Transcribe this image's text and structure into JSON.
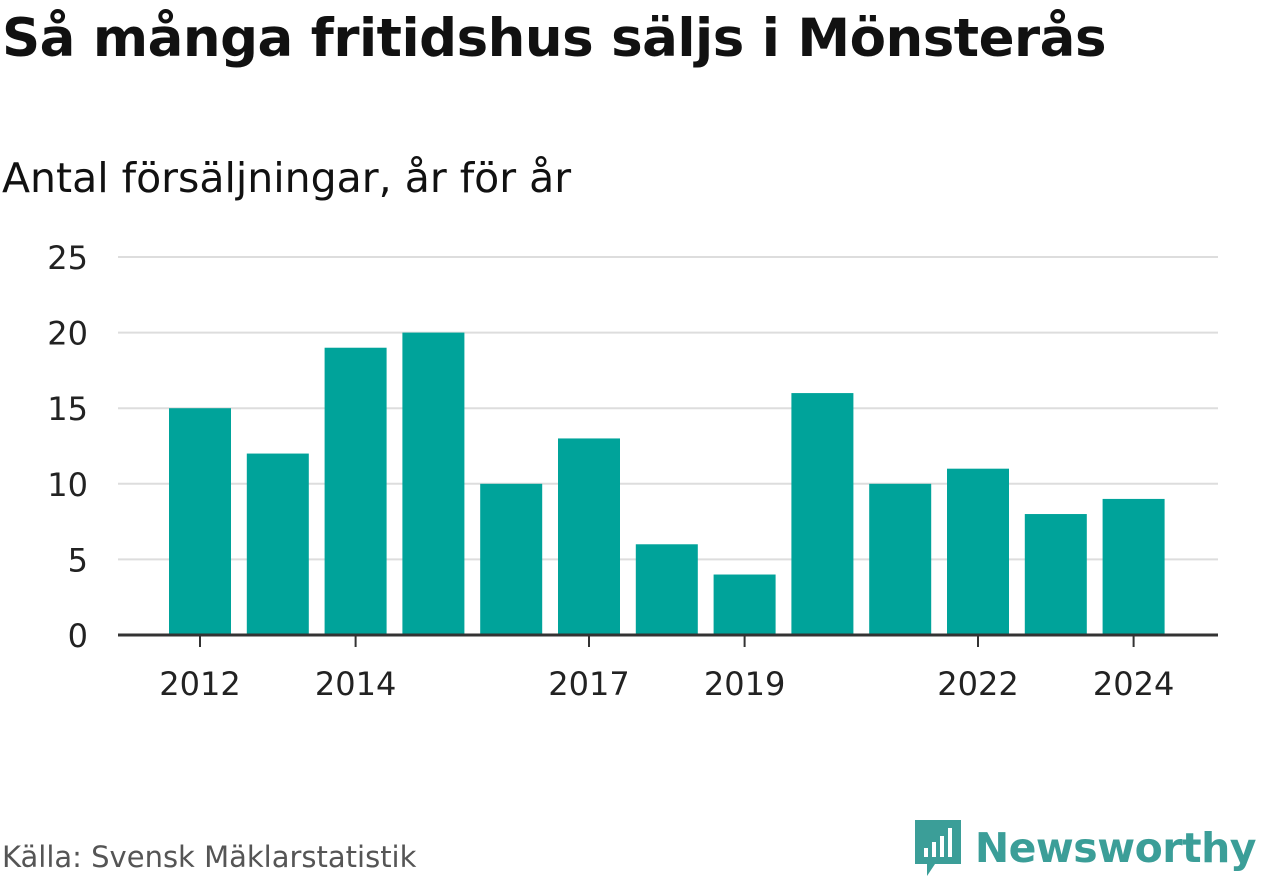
{
  "title": "Så många fritidshus säljs i Mönsterås",
  "subtitle": "Antal försäljningar, år för år",
  "source": "Källa: Svensk Mäklarstatistik",
  "brand": {
    "name": "Newsworthy",
    "icon": "newsworthy-logo-icon",
    "color": "#3b9e98"
  },
  "colors": {
    "bar": "#00a39a",
    "grid": "#dddddd",
    "axis": "#333333",
    "tick_text": "#222222"
  },
  "chart_data": {
    "type": "bar",
    "title": "Så många fritidshus säljs i Mönsterås",
    "subtitle": "Antal försäljningar, år för år",
    "xlabel": "",
    "ylabel": "",
    "categories": [
      "2012",
      "2013",
      "2014",
      "2015",
      "2016",
      "2017",
      "2018",
      "2019",
      "2020",
      "2021",
      "2022",
      "2023",
      "2024"
    ],
    "values": [
      15,
      12,
      19,
      20,
      10,
      13,
      6,
      4,
      16,
      10,
      11,
      8,
      9
    ],
    "x_tick_labels": [
      "2012",
      "2014",
      "2017",
      "2019",
      "2022",
      "2024"
    ],
    "y_ticks": [
      0,
      5,
      10,
      15,
      20,
      25
    ],
    "ylim": [
      0,
      25
    ],
    "grid": true,
    "legend": "none"
  }
}
